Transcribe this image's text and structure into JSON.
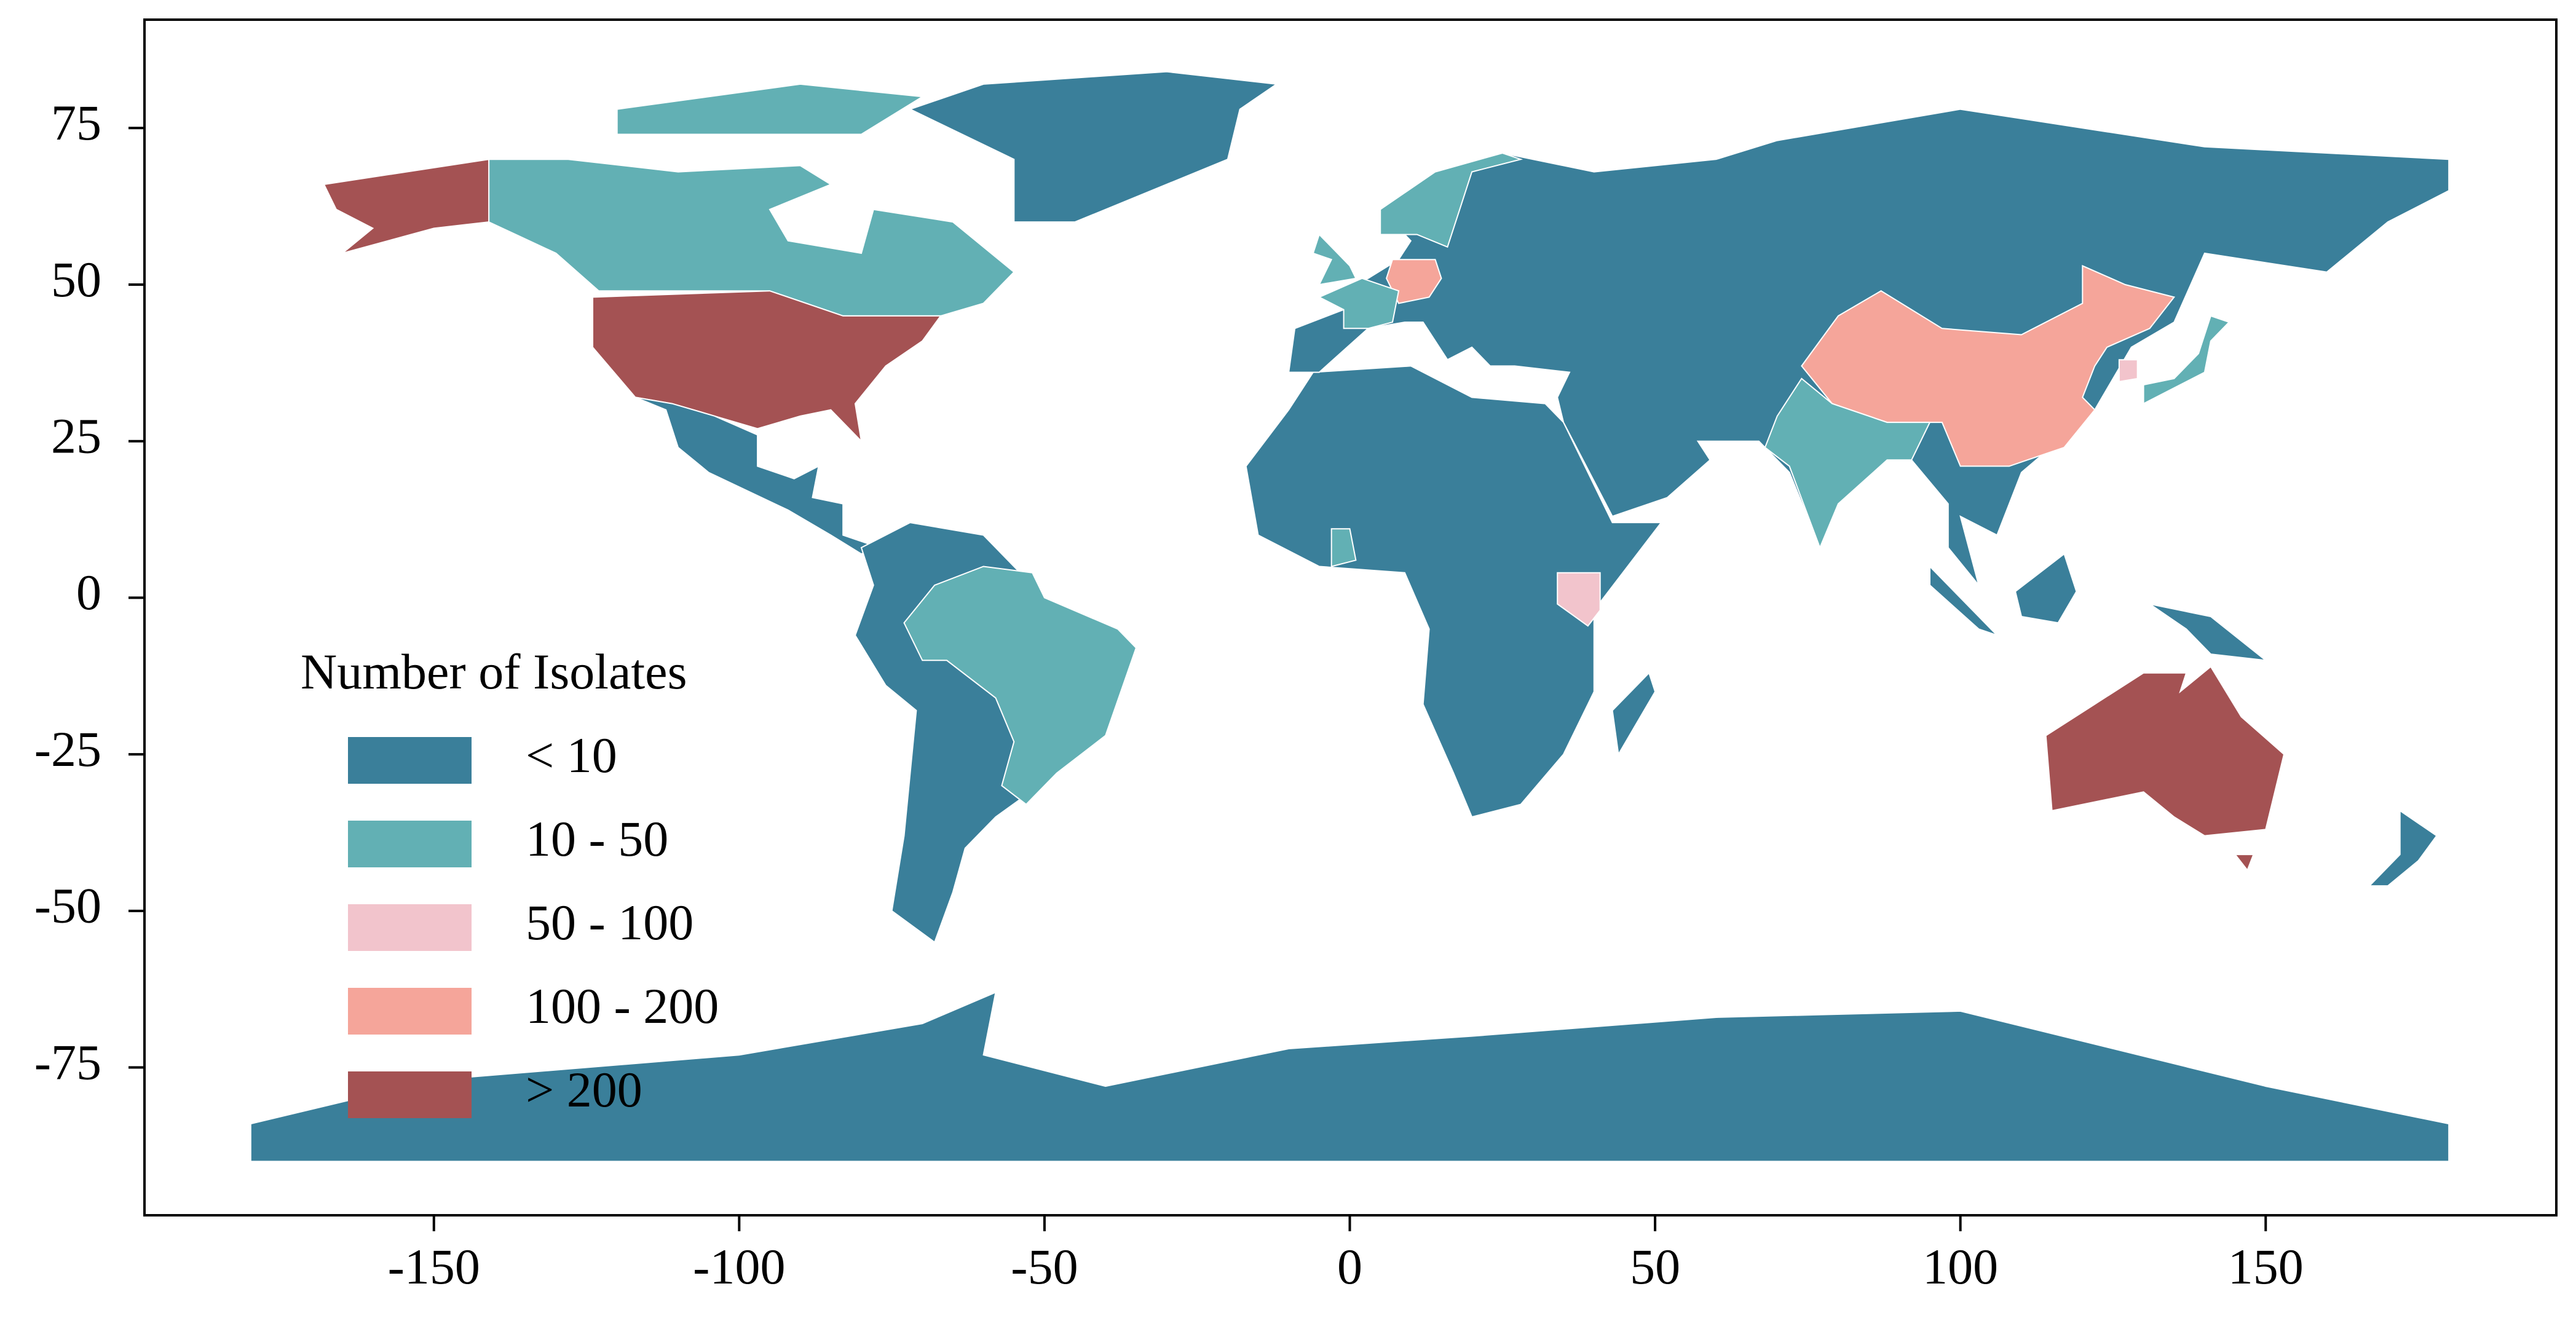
{
  "map": {
    "type": "choropleth",
    "xlim": [
      -197.4,
      197.6
    ],
    "ylim": [
      -98.6,
      92.3
    ],
    "xticks": [
      -150,
      -100,
      -50,
      0,
      50,
      100,
      150
    ],
    "yticks": [
      -75,
      -50,
      -25,
      0,
      25,
      50,
      75
    ],
    "legend": {
      "title": "Number of Isolates",
      "corner": "lower left",
      "entries": [
        {
          "label": "< 10",
          "color": "#3a7f9a"
        },
        {
          "label": "10 - 50",
          "color": "#62b0b4"
        },
        {
          "label": "50 - 100",
          "color": "#f2c4cc"
        },
        {
          "label": "100 - 200",
          "color": "#f5a59a"
        },
        {
          "label": "> 200",
          "color": "#a45253"
        }
      ]
    }
  }
}
